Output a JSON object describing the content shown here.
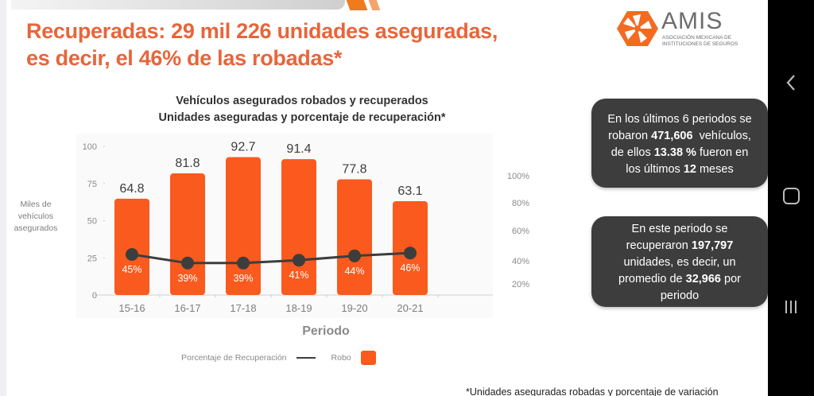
{
  "header": {
    "title_line1": "Recuperadas: 29 mil 226 unidades aseguradas,",
    "title_line2": "es decir, el 46% de las robadas*"
  },
  "logo": {
    "name": "AMIS",
    "subtitle_line1": "Asociación Mexicana de",
    "subtitle_line2": "Instituciones de Seguros",
    "brand_color": "#f26b21"
  },
  "chart_data": {
    "type": "bar",
    "title": "Vehículos asegurados robados y recuperados",
    "subtitle": "Unidades aseguradas y porcentaje de recuperación*",
    "xlabel": "Periodo",
    "ylabel": "Miles de vehículos asegurados",
    "ylabel_lines": [
      "Miles de",
      "vehículos",
      "asegurados"
    ],
    "categories": [
      "15-16",
      "16-17",
      "17-18",
      "18-19",
      "19-20",
      "20-21"
    ],
    "ylim": [
      0,
      100
    ],
    "yticks": [
      "0",
      "25",
      "50",
      "75",
      "100"
    ],
    "ytick_values": [
      0,
      25,
      50,
      75,
      100
    ],
    "y2ticks": [
      "20%",
      "40%",
      "60%",
      "80%",
      "100%"
    ],
    "grid": false,
    "legend_position": "bottom",
    "series": [
      {
        "name": "Robo",
        "type": "bar",
        "color": "#fa5a1e",
        "values": [
          64.8,
          81.8,
          92.7,
          91.4,
          77.8,
          63.1
        ],
        "labels": [
          "64.8",
          "81.8",
          "92.7",
          "91.4",
          "77.8",
          "63.1"
        ]
      },
      {
        "name": "Porcentaje de Recuperación",
        "type": "line",
        "color": "#3d3d3d",
        "values": [
          45,
          39,
          39,
          41,
          44,
          46
        ],
        "labels": [
          "45%",
          "39%",
          "39%",
          "41%",
          "44%",
          "46%"
        ]
      }
    ]
  },
  "legend": {
    "line_label": "Porcentaje de Recuperación",
    "bar_label": "Robo"
  },
  "info_box_1": {
    "line1": "En los últimos 6 periodos se",
    "line2_pre": "robaron ",
    "line2_bold": "471,606",
    "line2_post": "  vehículos,",
    "line3_pre": "de ellos ",
    "line3_bold": "13.38 %",
    "line3_post": " fueron en",
    "line4_pre": "los últimos ",
    "line4_bold": "12",
    "line4_post": " meses"
  },
  "info_box_2": {
    "line1": "En este periodo se",
    "line2_pre": "recuperaron ",
    "line2_bold": "197,797",
    "line3": "unidades, es decir, un",
    "line4_pre": "promedio de ",
    "line4_bold": "32,966",
    "line4_post": " por",
    "line5": "periodo"
  },
  "footnote": "*Unidades aseguradas robadas y porcentaje de variación",
  "navigation_bar": {
    "back_icon": "chevron-left-icon",
    "home_icon": "rounded-square-icon",
    "recents_icon": "three-bars-icon"
  }
}
